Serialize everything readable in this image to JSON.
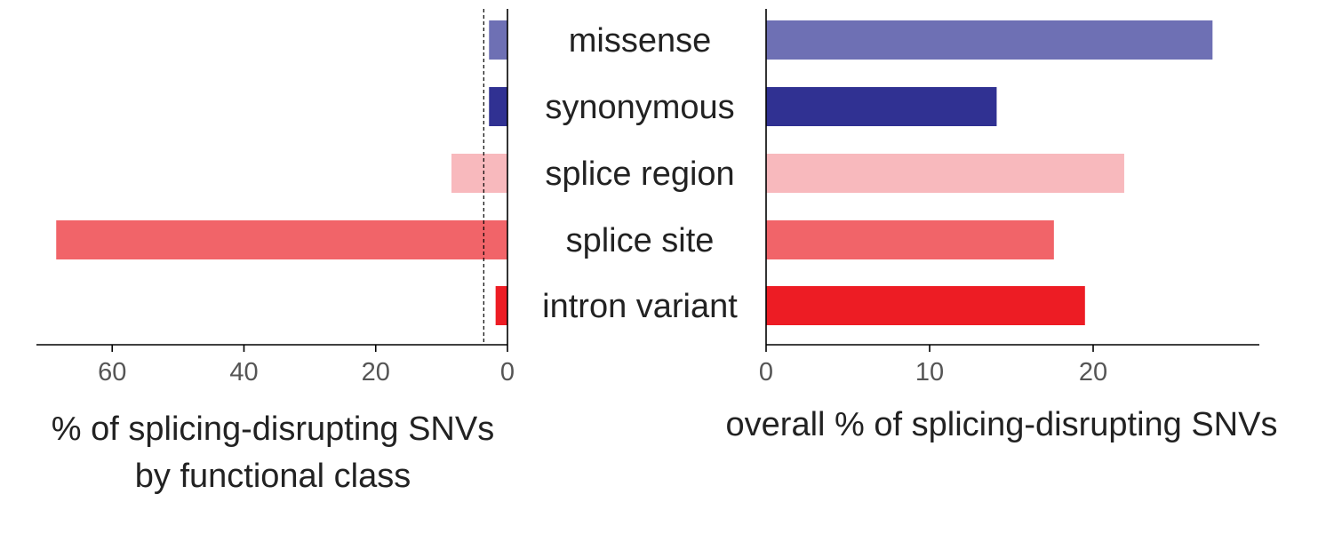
{
  "chart_data": [
    {
      "type": "bar",
      "orientation": "horizontal",
      "direction": "reversed",
      "categories": [
        "missense",
        "synonymous",
        "splice region",
        "splice site",
        "intron variant"
      ],
      "values": [
        2.8,
        2.8,
        8.5,
        68.5,
        1.8
      ],
      "colors": [
        "#6e70b4",
        "#303192",
        "#f8b9bd",
        "#f16469",
        "#ed1c24"
      ],
      "xlabel": "% of splicing-disrupting SNVs\nby functional class",
      "xlabel_lines": [
        "% of splicing-disrupting SNVs",
        "by functional class"
      ],
      "xlim": [
        0,
        71.5
      ],
      "xticks": [
        0,
        20,
        40,
        60
      ],
      "xtick_labels": [
        "0",
        "20",
        "40",
        "60"
      ],
      "reference_line": {
        "x": 3.6,
        "style": "dashed"
      }
    },
    {
      "type": "bar",
      "orientation": "horizontal",
      "categories": [
        "missense",
        "synonymous",
        "splice region",
        "splice site",
        "intron variant"
      ],
      "values": [
        27.3,
        14.1,
        21.9,
        17.6,
        19.5
      ],
      "colors": [
        "#6e70b4",
        "#303192",
        "#f8b9bd",
        "#f16469",
        "#ed1c24"
      ],
      "xlabel": "overall % of splicing-disrupting SNVs",
      "xlim": [
        0,
        30
      ],
      "xticks": [
        0,
        10,
        20
      ],
      "xtick_labels": [
        "0",
        "10",
        "20"
      ]
    }
  ]
}
